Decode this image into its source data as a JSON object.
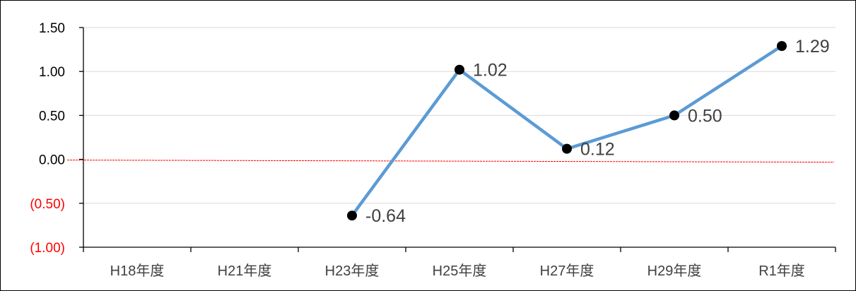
{
  "chart_data": {
    "type": "line",
    "title": "",
    "xlabel": "",
    "ylabel": "",
    "categories": [
      "H18年度",
      "H21年度",
      "H23年度",
      "H25年度",
      "H27年度",
      "H29年度",
      "R1年度"
    ],
    "series": [
      {
        "values": [
          null,
          null,
          -0.64,
          1.02,
          0.12,
          0.5,
          1.29
        ],
        "labels": [
          "",
          "",
          "-0.64",
          "1.02",
          "0.12",
          "0.50",
          "1.29"
        ]
      }
    ],
    "ylim": [
      -1.0,
      1.5
    ],
    "yticks": [
      1.5,
      1.0,
      0.5,
      0.0,
      -0.5,
      -1.0
    ],
    "ytick_labels": [
      "1.50",
      "1.00",
      "0.50",
      "0.00",
      "(0.50)",
      "(1.00)"
    ],
    "zero_reference_line": true,
    "grid": true,
    "legend": "none",
    "colors": {
      "line": "#5b9bd5",
      "marker": "#000000",
      "reference_line": "#ff0000",
      "negative_tick": "#ff0000",
      "positive_tick": "#000000",
      "gridline": "#d9d9d9",
      "text": "#404040"
    }
  }
}
